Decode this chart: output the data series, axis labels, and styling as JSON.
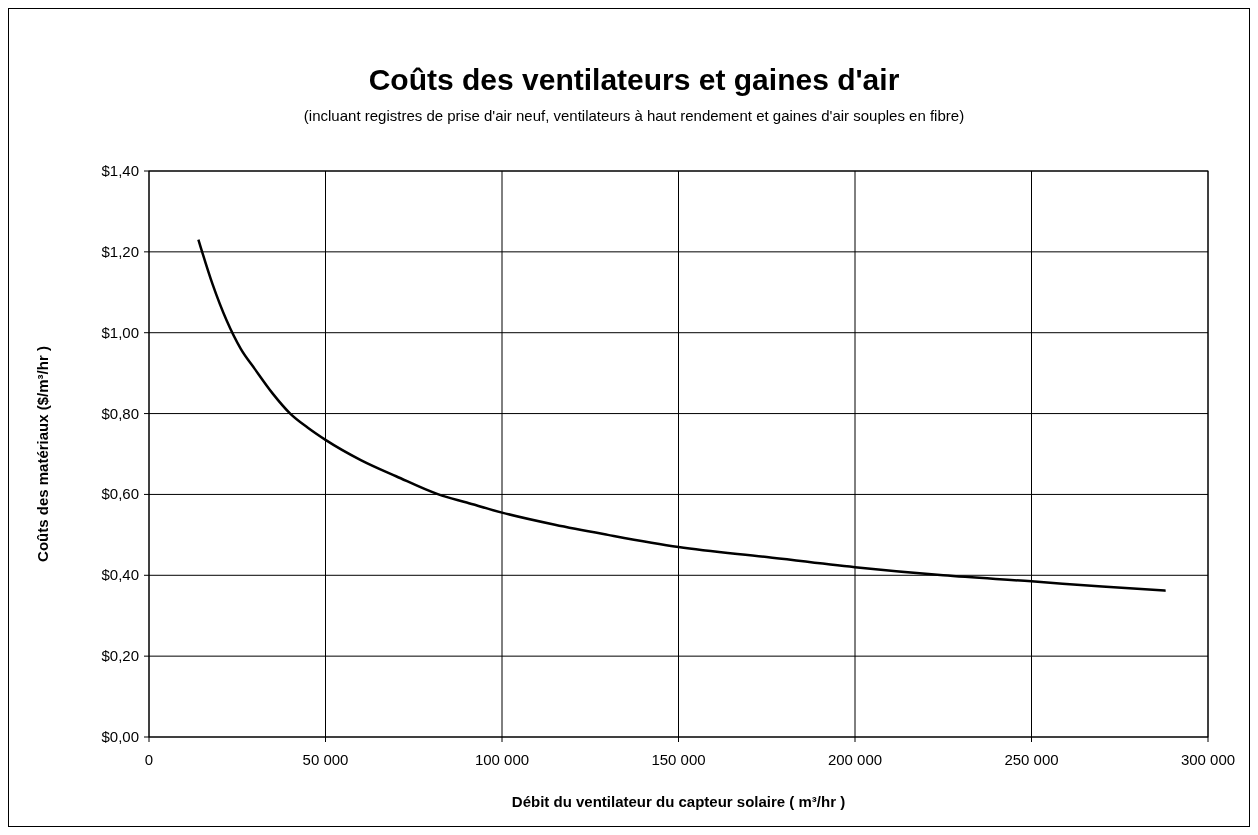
{
  "chart_data": {
    "type": "line",
    "title": "Coûts des ventilateurs et gaines d'air",
    "subtitle": "(incluant registres de prise d'air neuf, ventilateurs à haut rendement et gaines d'air souples en fibre)",
    "xlabel": "Débit du ventilateur du capteur solaire ( m³/hr )",
    "ylabel": "Coûts des matériaux ($/m³/hr )",
    "x": [
      14000,
      18000,
      22000,
      26000,
      30000,
      35000,
      40000,
      45000,
      50000,
      60000,
      70000,
      82000,
      90000,
      100000,
      115000,
      130000,
      150000,
      175000,
      200000,
      225000,
      250000,
      270000,
      288000
    ],
    "series": [
      {
        "color": "#000000",
        "values": [
          1.23,
          1.12,
          1.03,
          0.96,
          0.91,
          0.85,
          0.8,
          0.765,
          0.735,
          0.685,
          0.645,
          0.6,
          0.58,
          0.555,
          0.525,
          0.5,
          0.47,
          0.445,
          0.42,
          0.4,
          0.385,
          0.372,
          0.362
        ]
      }
    ],
    "xlim": [
      0,
      300000
    ],
    "xticks": [
      {
        "value": 0,
        "label": "0"
      },
      {
        "value": 50000,
        "label": "50 000"
      },
      {
        "value": 100000,
        "label": "100 000"
      },
      {
        "value": 150000,
        "label": "150 000"
      },
      {
        "value": 200000,
        "label": "200 000"
      },
      {
        "value": 250000,
        "label": "250 000"
      },
      {
        "value": 300000,
        "label": "300 000"
      }
    ],
    "ylim": [
      0,
      1.4
    ],
    "yticks": [
      {
        "value": 0,
        "label": "$0,00"
      },
      {
        "value": 0.2,
        "label": "$0,20"
      },
      {
        "value": 0.4,
        "label": "$0,40"
      },
      {
        "value": 0.6,
        "label": "$0,60"
      },
      {
        "value": 0.8,
        "label": "$0,80"
      },
      {
        "value": 1,
        "label": "$1,00"
      },
      {
        "value": 1.2,
        "label": "$1,20"
      },
      {
        "value": 1.4,
        "label": "$1,40"
      }
    ],
    "grid": true,
    "marker": "none",
    "line_style": "solid"
  }
}
